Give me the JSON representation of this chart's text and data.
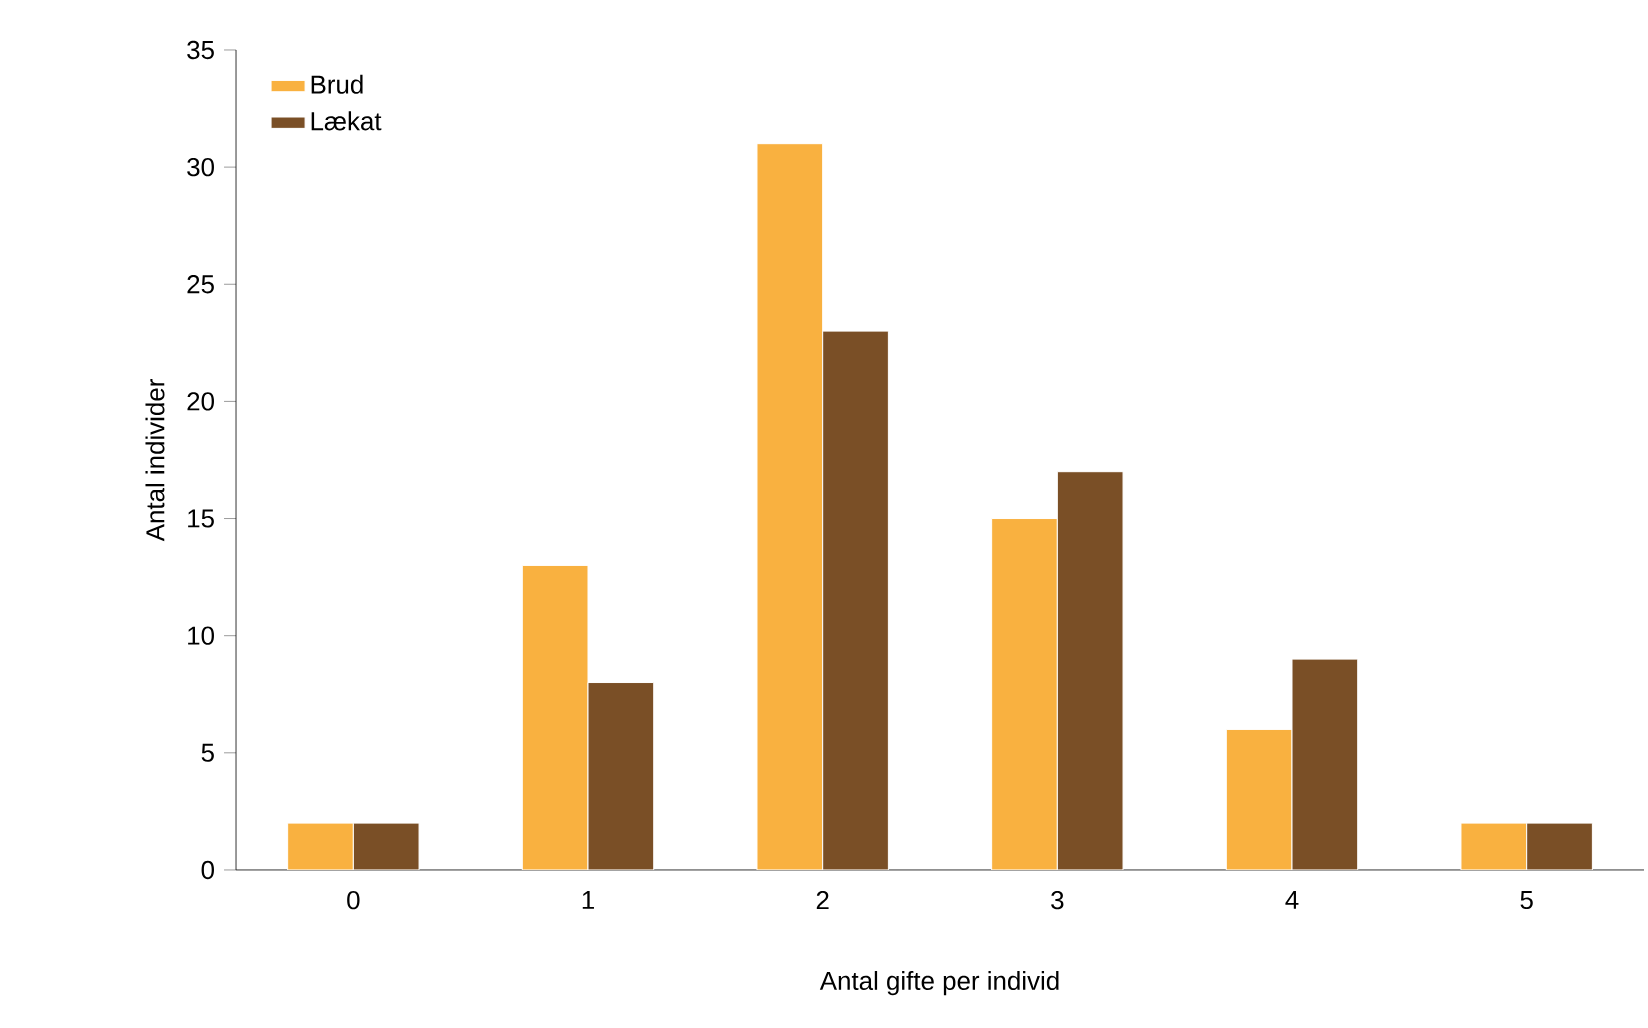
{
  "chart_data": {
    "type": "bar",
    "xlabel": "Antal gifte per individ",
    "ylabel": "Antal individer",
    "categories": [
      "0",
      "1",
      "2",
      "3",
      "4",
      "5"
    ],
    "series": [
      {
        "name": "Brud",
        "color": "#f9b140",
        "values": [
          2,
          13,
          31,
          15,
          6,
          2
        ]
      },
      {
        "name": "Lækat",
        "color": "#7a4f26",
        "values": [
          2,
          8,
          23,
          17,
          9,
          2
        ]
      }
    ],
    "ylim": [
      0,
      35
    ],
    "yticks": [
      0,
      5,
      10,
      15,
      20,
      25,
      30,
      35
    ],
    "legend": "top left"
  }
}
